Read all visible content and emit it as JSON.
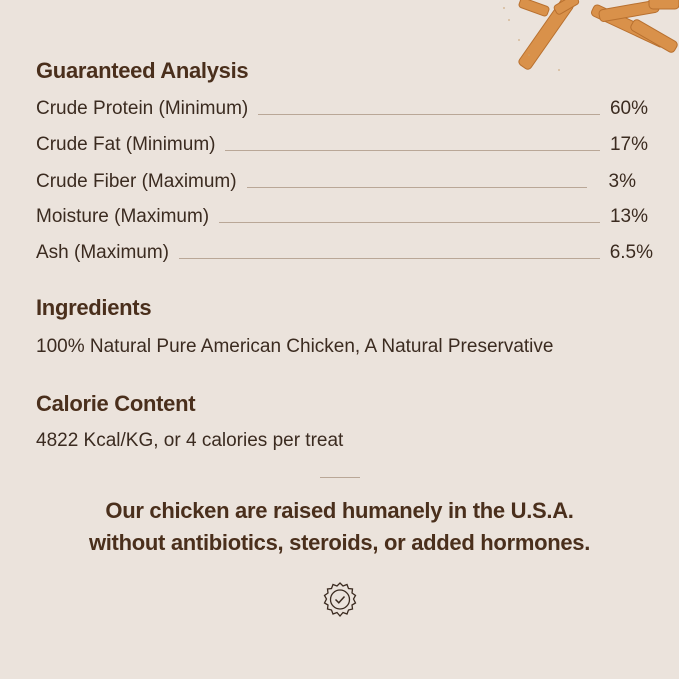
{
  "guaranteed_analysis": {
    "title": "Guaranteed Analysis",
    "rows": [
      {
        "label": "Crude Protein (Minimum)",
        "value": "60%"
      },
      {
        "label": "Crude Fat (Minimum)",
        "value": "17%"
      },
      {
        "label": "Crude Fiber (Maximum)",
        "value": "3%"
      },
      {
        "label": "Moisture (Maximum)",
        "value": "13%"
      },
      {
        "label": "Ash (Maximum)",
        "value": "6.5%"
      }
    ]
  },
  "ingredients": {
    "title": "Ingredients",
    "text": "100% Natural Pure American Chicken, A Natural Preservative"
  },
  "calorie_content": {
    "title": "Calorie Content",
    "text": "4822 Kcal/KG, or 4 calories per treat"
  },
  "claim": {
    "line1": "Our chicken are raised humanely in the U.S.A.",
    "line2": "without antibiotics, steroids, or added hormones."
  },
  "badge_icon": "verified-check-badge-icon",
  "colors": {
    "background": "#ebe3dc",
    "heading": "#4a2f1c",
    "text": "#3b2b20",
    "rule": "#b9a797",
    "chicken": "#d9914a"
  }
}
